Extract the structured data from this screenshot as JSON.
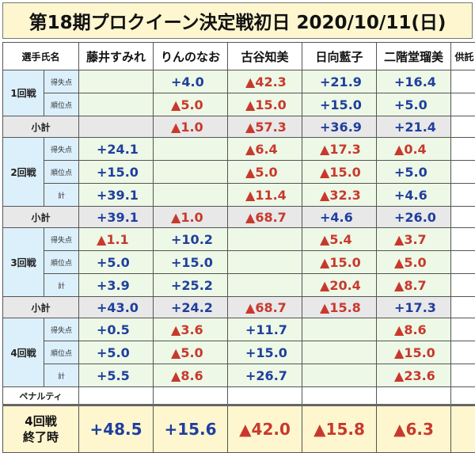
{
  "title": "第18期プロクイーン決定戦初日 2020/10/11(日)",
  "header": {
    "player_label": "選手氏名",
    "players": [
      "藤井すみれ",
      "りんのなお",
      "古谷知美",
      "日向藍子",
      "二階堂瑠美"
    ],
    "deal_label": "供託"
  },
  "rounds": [
    {
      "label": "1回戦",
      "rows": [
        {
          "sub": "得失点",
          "values": [
            "",
            "+4.0",
            "▲42.3",
            "+21.9",
            "+16.4"
          ]
        },
        {
          "sub": "順位点",
          "values": [
            "",
            "▲5.0",
            "▲15.0",
            "+15.0",
            "+5.0"
          ]
        }
      ],
      "subtotal": {
        "label": "小計",
        "values": [
          "",
          "▲1.0",
          "▲57.3",
          "+36.9",
          "+21.4"
        ]
      }
    },
    {
      "label": "2回戦",
      "rows": [
        {
          "sub": "得失点",
          "values": [
            "+24.1",
            "",
            "▲6.4",
            "▲17.3",
            "▲0.4"
          ]
        },
        {
          "sub": "順位点",
          "values": [
            "+15.0",
            "",
            "▲5.0",
            "▲15.0",
            "+5.0"
          ]
        },
        {
          "sub": "計",
          "values": [
            "+39.1",
            "",
            "▲11.4",
            "▲32.3",
            "+4.6"
          ]
        }
      ],
      "subtotal": {
        "label": "小計",
        "values": [
          "+39.1",
          "▲1.0",
          "▲68.7",
          "+4.6",
          "+26.0"
        ]
      }
    },
    {
      "label": "3回戦",
      "rows": [
        {
          "sub": "得失点",
          "values": [
            "▲1.1",
            "+10.2",
            "",
            "▲5.4",
            "▲3.7"
          ]
        },
        {
          "sub": "順位点",
          "values": [
            "+5.0",
            "+15.0",
            "",
            "▲15.0",
            "▲5.0"
          ]
        },
        {
          "sub": "計",
          "values": [
            "+3.9",
            "+25.2",
            "",
            "▲20.4",
            "▲8.7"
          ]
        }
      ],
      "subtotal": {
        "label": "小計",
        "values": [
          "+43.0",
          "+24.2",
          "▲68.7",
          "▲15.8",
          "+17.3"
        ]
      }
    },
    {
      "label": "4回戦",
      "rows": [
        {
          "sub": "得失点",
          "values": [
            "+0.5",
            "▲3.6",
            "+11.7",
            "",
            "▲8.6"
          ]
        },
        {
          "sub": "順位点",
          "values": [
            "+5.0",
            "▲5.0",
            "+15.0",
            "",
            "▲15.0"
          ]
        },
        {
          "sub": "計",
          "values": [
            "+5.5",
            "▲8.6",
            "+26.7",
            "",
            "▲23.6"
          ]
        }
      ]
    }
  ],
  "penalty_label": "ペナルティ",
  "final": {
    "label_line1": "4回戦",
    "label_line2": "終了時",
    "values": [
      "+48.5",
      "+15.6",
      "▲42.0",
      "▲15.8",
      "▲6.3"
    ]
  },
  "colors": {
    "positive": "#1f3f9e",
    "negative": "#c8392d",
    "title_bg": "#fdf6cf",
    "row_bg": "#edf8e6",
    "round_bg": "#dcf0fc",
    "subtotal_bg": "#e8e8e8"
  }
}
